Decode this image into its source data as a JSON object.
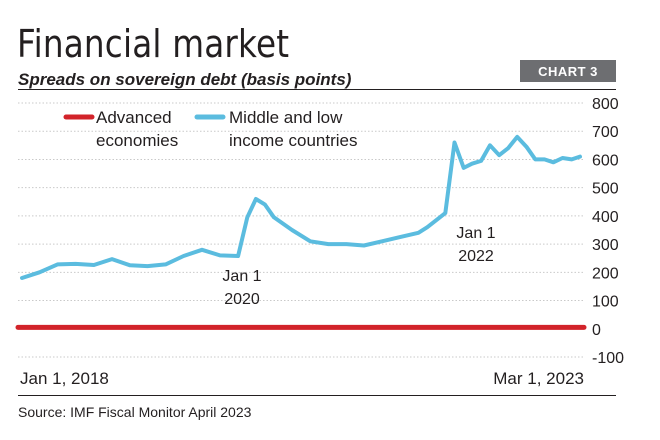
{
  "title": "Financial market",
  "subtitle": "Spreads on sovereign debt (basis points)",
  "badge": "CHART 3",
  "source": "Source: IMF Fiscal Monitor April 2023",
  "colors": {
    "advanced": "#d2232a",
    "middle_low": "#5bbcdf",
    "badge_bg": "#6d6e71"
  },
  "chart_data": {
    "type": "line",
    "title": "Spreads on sovereign debt (basis points)",
    "x_start_label": "Jan 1, 2018",
    "x_end_label": "Mar 1, 2023",
    "ylim": [
      -100,
      800
    ],
    "yticks": [
      "800",
      "700",
      "600",
      "500",
      "400",
      "300",
      "200",
      "100",
      "0",
      "-100"
    ],
    "legend": {
      "advanced_line1": "Advanced",
      "advanced_line2": "economies",
      "middle_line1": "Middle and low",
      "middle_line2": "income countries"
    },
    "annotations": [
      {
        "line1": "Jan 1",
        "line2": "2020"
      },
      {
        "line1": "Jan 1",
        "line2": "2022"
      }
    ],
    "series": [
      {
        "name": "Advanced economies",
        "x": [
          "2018-01-01",
          "2023-03-01"
        ],
        "values": [
          5,
          5
        ]
      },
      {
        "name": "Middle and low income countries",
        "x": [
          "2018-01-01",
          "2018-03-01",
          "2018-05-01",
          "2018-07-01",
          "2018-09-01",
          "2018-11-01",
          "2019-01-01",
          "2019-03-01",
          "2019-05-01",
          "2019-07-01",
          "2019-09-01",
          "2019-11-01",
          "2020-01-01",
          "2020-02-01",
          "2020-03-01",
          "2020-04-01",
          "2020-05-01",
          "2020-07-01",
          "2020-09-01",
          "2020-11-01",
          "2021-01-01",
          "2021-03-01",
          "2021-05-01",
          "2021-07-01",
          "2021-09-01",
          "2021-10-01",
          "2021-11-01",
          "2021-12-01",
          "2022-01-01",
          "2022-02-01",
          "2022-03-01",
          "2022-04-01",
          "2022-05-01",
          "2022-06-01",
          "2022-07-01",
          "2022-08-01",
          "2022-09-01",
          "2022-10-01",
          "2022-11-01",
          "2022-12-01",
          "2023-01-01",
          "2023-02-01",
          "2023-03-01"
        ],
        "values": [
          180,
          200,
          228,
          230,
          226,
          247,
          225,
          222,
          228,
          258,
          280,
          260,
          258,
          395,
          460,
          440,
          395,
          350,
          310,
          300,
          300,
          295,
          310,
          325,
          340,
          360,
          385,
          410,
          660,
          570,
          585,
          595,
          650,
          615,
          640,
          680,
          645,
          600,
          600,
          590,
          605,
          600,
          610
        ]
      }
    ]
  }
}
